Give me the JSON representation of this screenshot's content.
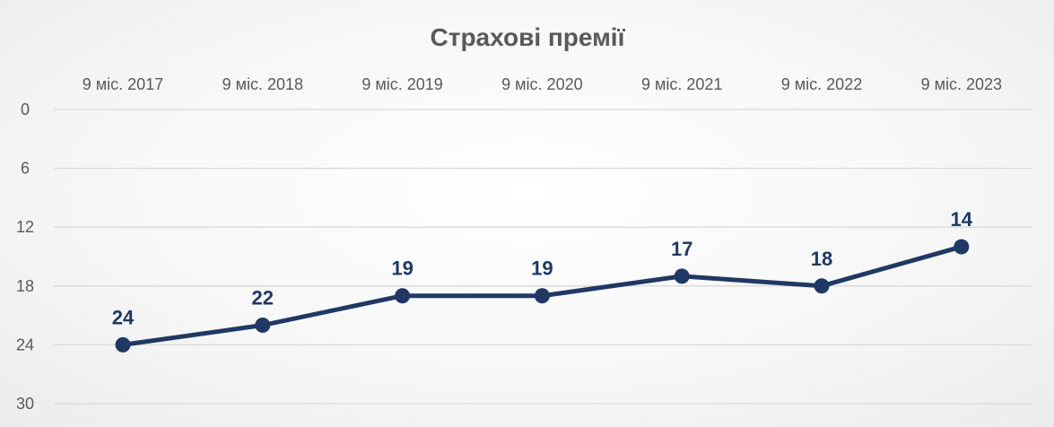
{
  "chart_data": {
    "type": "line",
    "title": "Страхові премії",
    "categories": [
      "9 міс. 2017",
      "9 міс. 2018",
      "9 міс. 2019",
      "9 міс. 2020",
      "9 міс. 2021",
      "9 міс. 2022",
      "9 міс. 2023"
    ],
    "series": [
      {
        "values": [
          24,
          22,
          19,
          19,
          17,
          18,
          14
        ]
      }
    ],
    "data_labels": [
      "24",
      "22",
      "19",
      "19",
      "17",
      "18",
      "14"
    ],
    "yticks": [
      "0",
      "6",
      "12",
      "18",
      "24",
      "30"
    ],
    "ylim": [
      0,
      30
    ],
    "y_axis_reversed": true,
    "x_axis_position": "top",
    "grid": true,
    "legend": "none",
    "colors": {
      "line": "#1f3864",
      "marker": "#1f3864",
      "grid": "#d9d9d9",
      "text": "#595959"
    }
  }
}
